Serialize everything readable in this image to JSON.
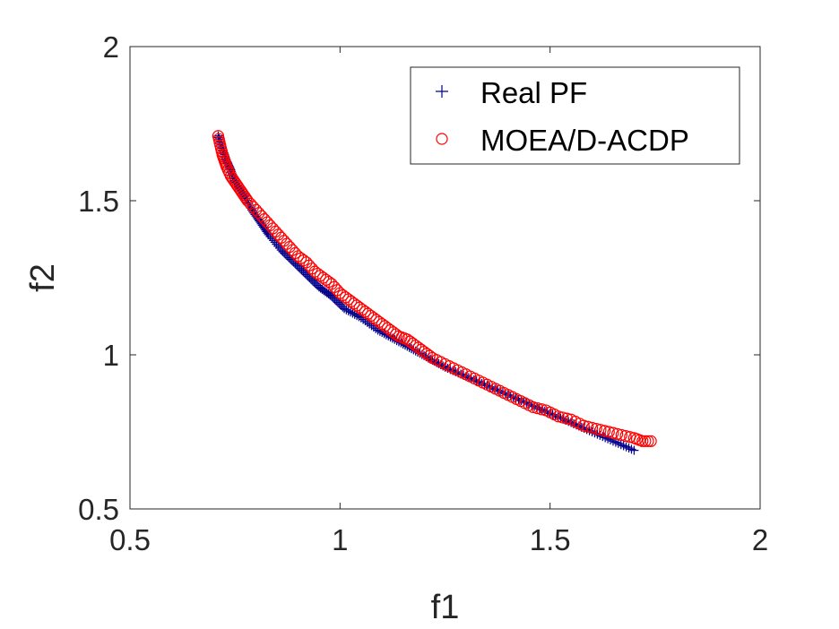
{
  "chart_data": {
    "type": "scatter",
    "xlabel": "f1",
    "ylabel": "f2",
    "xlim": [
      0.5,
      2
    ],
    "ylim": [
      0.5,
      2
    ],
    "xticks": [
      0.5,
      1,
      1.5,
      2
    ],
    "yticks": [
      0.5,
      1,
      1.5,
      2
    ],
    "xtick_labels": [
      "0.5",
      "1",
      "1.5",
      "2"
    ],
    "ytick_labels": [
      "0.5",
      "1",
      "1.5",
      "2"
    ],
    "grid": false,
    "legend_position": "top-right",
    "series": [
      {
        "name": "Real PF",
        "marker": "plus",
        "color": "#00008B",
        "x": [
          0.71,
          0.72,
          0.73,
          0.74,
          0.75,
          0.77,
          0.79,
          0.81,
          0.83,
          0.86,
          0.89,
          0.92,
          0.95,
          0.98,
          1.01,
          1.05,
          1.09,
          1.13,
          1.17,
          1.21,
          1.25,
          1.3,
          1.35,
          1.4,
          1.45,
          1.5,
          1.55,
          1.6,
          1.65,
          1.7
        ],
        "y": [
          1.71,
          1.67,
          1.63,
          1.6,
          1.56,
          1.52,
          1.47,
          1.43,
          1.39,
          1.34,
          1.3,
          1.26,
          1.22,
          1.19,
          1.15,
          1.12,
          1.08,
          1.05,
          1.02,
          0.99,
          0.96,
          0.93,
          0.9,
          0.87,
          0.84,
          0.81,
          0.78,
          0.75,
          0.72,
          0.69
        ]
      },
      {
        "name": "MOEA/D-ACDP",
        "marker": "circle",
        "color": "#FF0000",
        "x": [
          0.71,
          0.715,
          0.72,
          0.725,
          0.73,
          0.74,
          0.75,
          0.76,
          0.77,
          0.78,
          0.8,
          0.82,
          0.84,
          0.86,
          0.88,
          0.9,
          0.92,
          0.94,
          0.96,
          0.98,
          1.0,
          1.02,
          1.04,
          1.06,
          1.08,
          1.1,
          1.12,
          1.14,
          1.16,
          1.18,
          1.2,
          1.22,
          1.25,
          1.28,
          1.31,
          1.34,
          1.37,
          1.4,
          1.43,
          1.46,
          1.49,
          1.52,
          1.55,
          1.58,
          1.61,
          1.64,
          1.67,
          1.7,
          1.72,
          1.74
        ],
        "y": [
          1.71,
          1.68,
          1.65,
          1.63,
          1.61,
          1.58,
          1.56,
          1.54,
          1.52,
          1.5,
          1.47,
          1.44,
          1.41,
          1.38,
          1.35,
          1.32,
          1.3,
          1.27,
          1.25,
          1.23,
          1.2,
          1.18,
          1.16,
          1.14,
          1.12,
          1.1,
          1.08,
          1.06,
          1.05,
          1.03,
          1.01,
          0.99,
          0.97,
          0.95,
          0.93,
          0.91,
          0.89,
          0.87,
          0.85,
          0.83,
          0.82,
          0.8,
          0.79,
          0.77,
          0.76,
          0.75,
          0.74,
          0.73,
          0.72,
          0.72
        ]
      }
    ]
  }
}
